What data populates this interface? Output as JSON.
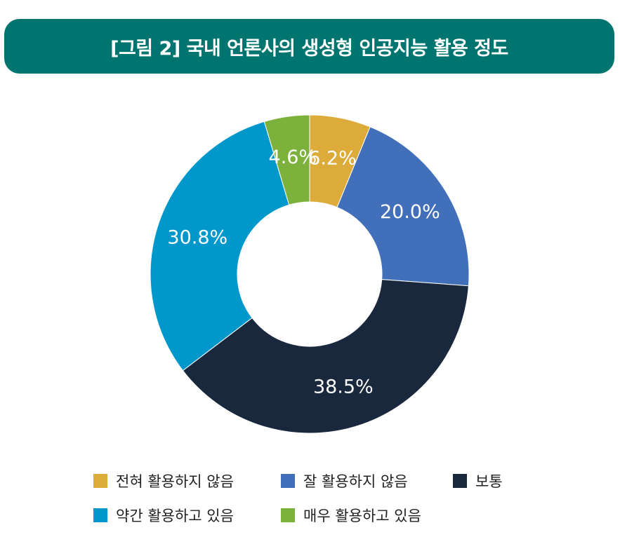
{
  "chart_data": {
    "type": "pie",
    "donut": true,
    "title": "[그림 2] 국내 언론사의 생성형 인공지능 활용 정도",
    "value_suffix": "%",
    "categories": [
      "전혀 활용하지 않음",
      "잘 활용하지 않음",
      "보통",
      "약간 활용하고 있음",
      "매우 활용하고 있음"
    ],
    "values": [
      6.2,
      20.0,
      38.5,
      30.8,
      4.6
    ],
    "labels": [
      "6.2%",
      "20.0%",
      "38.5%",
      "30.8%",
      "4.6%"
    ],
    "colors": [
      "#dcab3a",
      "#416fb9",
      "#19283d",
      "#0098cb",
      "#7cb23b"
    ],
    "start": "12 o'clock",
    "direction": "clockwise",
    "legend_position": "bottom"
  }
}
